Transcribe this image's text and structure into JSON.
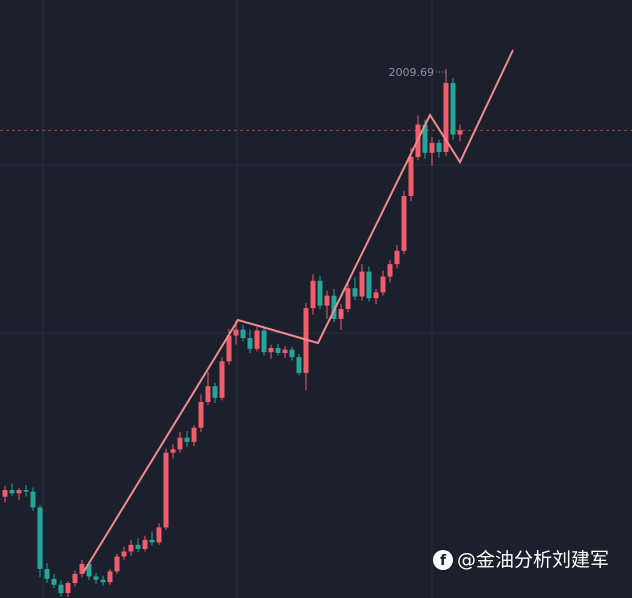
{
  "chart_data": {
    "type": "candlestick",
    "open": [
      1958.2,
      1959.0,
      1958.6,
      1959.0,
      1958.8,
      1956.9,
      1949.5,
      1948.3,
      1947.6,
      1946.6,
      1947.8,
      1948.9,
      1950.1,
      1948.6,
      1948.2,
      1947.9,
      1949.2,
      1951.0,
      1951.6,
      1952.4,
      1951.9,
      1953.0,
      1952.7,
      1954.5,
      1963.5,
      1963.9,
      1965.3,
      1964.8,
      1966.5,
      1969.6,
      1971.5,
      1970.1,
      1974.5,
      1977.6,
      1978.3,
      1977.3,
      1976.0,
      1978.2,
      1975.6,
      1976.1,
      1975.5,
      1975.9,
      1975.0,
      1973.1,
      1980.9,
      1984.2,
      1981.2,
      1982.4,
      1979.6,
      1980.8,
      1983.3,
      1982.3,
      1985.3,
      1982.1,
      1982.8,
      1984.7,
      1986.2,
      1987.8,
      1994.4,
      1999.1,
      2003.0,
      1999.6,
      2000.8,
      1999.7,
      2008.0,
      2001.8
    ],
    "high": [
      1959.5,
      1959.8,
      1959.2,
      1959.6,
      1959.3,
      1957.2,
      1950.2,
      1948.9,
      1948.1,
      1948.0,
      1949.3,
      1950.6,
      1950.4,
      1949.0,
      1948.7,
      1949.5,
      1951.3,
      1952.2,
      1953.0,
      1953.2,
      1953.5,
      1954.0,
      1955.0,
      1964.0,
      1964.5,
      1966.0,
      1966.1,
      1966.8,
      1970.5,
      1973.2,
      1971.9,
      1975.0,
      1978.4,
      1979.4,
      1978.9,
      1978.3,
      1978.6,
      1978.8,
      1976.5,
      1976.6,
      1976.3,
      1976.2,
      1975.4,
      1981.5,
      1985.0,
      1984.8,
      1983.0,
      1983.2,
      1981.4,
      1984.1,
      1984.6,
      1986.2,
      1985.9,
      1983.2,
      1985.4,
      1986.7,
      1988.5,
      1995.0,
      2000.2,
      2004.1,
      2003.6,
      2001.5,
      2001.2,
      2009.69,
      2008.6,
      2003.0
    ],
    "low": [
      1957.5,
      1958.3,
      1957.8,
      1958.2,
      1956.5,
      1948.5,
      1947.8,
      1947.2,
      1946.2,
      1946.1,
      1947.4,
      1948.5,
      1948.2,
      1947.7,
      1947.5,
      1947.6,
      1948.9,
      1950.6,
      1951.1,
      1951.5,
      1951.6,
      1952.3,
      1952.4,
      1954.2,
      1962.8,
      1963.5,
      1964.2,
      1964.3,
      1966.0,
      1969.2,
      1969.5,
      1969.8,
      1974.1,
      1976.5,
      1976.9,
      1975.5,
      1975.7,
      1975.2,
      1974.8,
      1975.2,
      1974.9,
      1974.6,
      1972.8,
      1971.0,
      1980.1,
      1980.8,
      1979.6,
      1979.2,
      1978.3,
      1980.4,
      1981.9,
      1981.8,
      1981.7,
      1981.4,
      1982.4,
      1984.0,
      1985.7,
      1987.4,
      1993.8,
      1998.7,
      1998.9,
      1998.0,
      1999.0,
      1999.2,
      2001.2,
      2001.0
    ],
    "close": [
      1959.0,
      1958.6,
      1959.0,
      1958.8,
      1956.9,
      1949.5,
      1948.3,
      1947.6,
      1946.6,
      1947.8,
      1948.9,
      1950.1,
      1948.6,
      1948.2,
      1947.9,
      1949.2,
      1951.0,
      1951.6,
      1952.4,
      1951.9,
      1953.0,
      1952.7,
      1954.5,
      1963.5,
      1963.9,
      1965.3,
      1964.8,
      1966.5,
      1969.6,
      1971.5,
      1970.1,
      1974.5,
      1977.6,
      1978.3,
      1977.3,
      1976.0,
      1978.2,
      1975.6,
      1976.1,
      1975.5,
      1975.9,
      1975.0,
      1973.1,
      1980.9,
      1984.2,
      1981.2,
      1982.4,
      1979.6,
      1980.8,
      1983.3,
      1982.3,
      1985.3,
      1982.1,
      1982.8,
      1984.7,
      1986.2,
      1987.8,
      1994.4,
      1999.1,
      2003.0,
      1999.6,
      2000.8,
      1999.7,
      2008.0,
      2001.8,
      2002.3
    ],
    "up_color": "#f05d6c",
    "down_color": "#26a69a",
    "ylim": [
      1946,
      2018
    ],
    "watermark": "@金油分析刘建军"
  }
}
